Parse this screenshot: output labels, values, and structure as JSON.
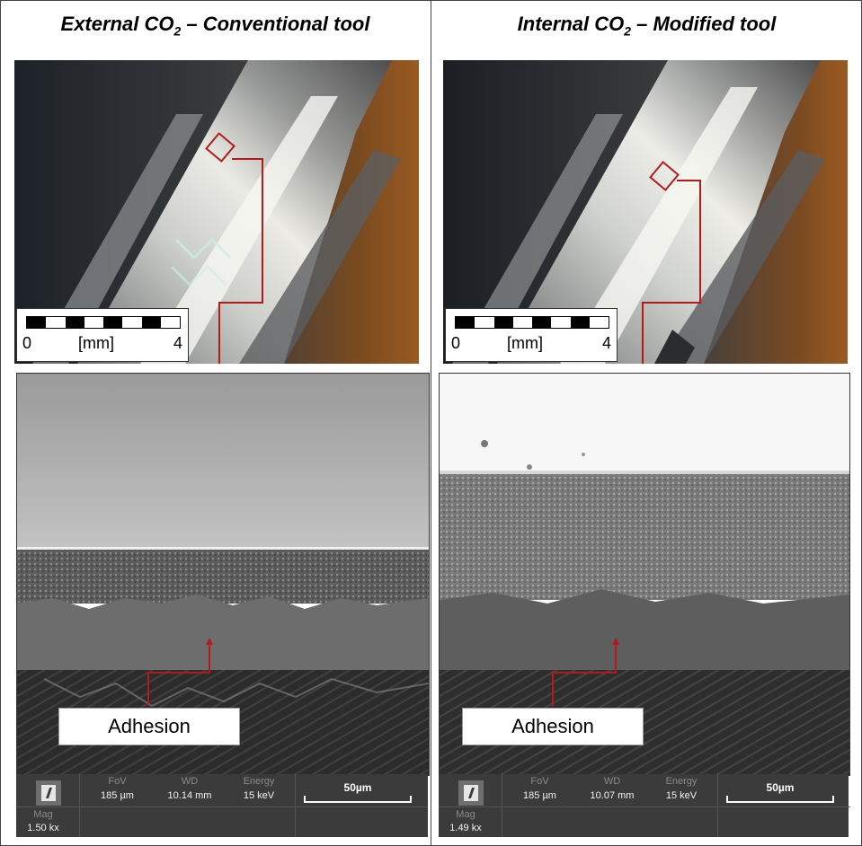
{
  "panels": [
    {
      "title_prefix": "External CO",
      "title_subscript": "2",
      "title_suffix": " – Conventional tool",
      "scale": {
        "min": "0",
        "unit": "[mm]",
        "max": "4"
      },
      "annotation": "Adhesion",
      "sem_info": {
        "fov_label": "FoV",
        "fov_value": "185 µm",
        "wd_label": "WD",
        "wd_value": "10.14 mm",
        "energy_label": "Energy",
        "energy_value": "15 keV",
        "mag_label": "Mag",
        "mag_value": "1.50 kx",
        "scalebar_label": "50µm"
      }
    },
    {
      "title_prefix": "Internal CO",
      "title_subscript": "2",
      "title_suffix": " – Modified tool",
      "scale": {
        "min": "0",
        "unit": "[mm]",
        "max": "4"
      },
      "annotation": "Adhesion",
      "sem_info": {
        "fov_label": "FoV",
        "fov_value": "185 µm",
        "wd_label": "WD",
        "wd_value": "10.07 mm",
        "energy_label": "Energy",
        "energy_value": "15 keV",
        "mag_label": "Mag",
        "mag_value": "1.49 kx",
        "scalebar_label": "50µm"
      }
    }
  ],
  "colors": {
    "marker": "#b31b1b",
    "info_bar": "#3b3b3b",
    "tool_tint": "#c8c9c4",
    "background_left": "#7a4a20"
  }
}
